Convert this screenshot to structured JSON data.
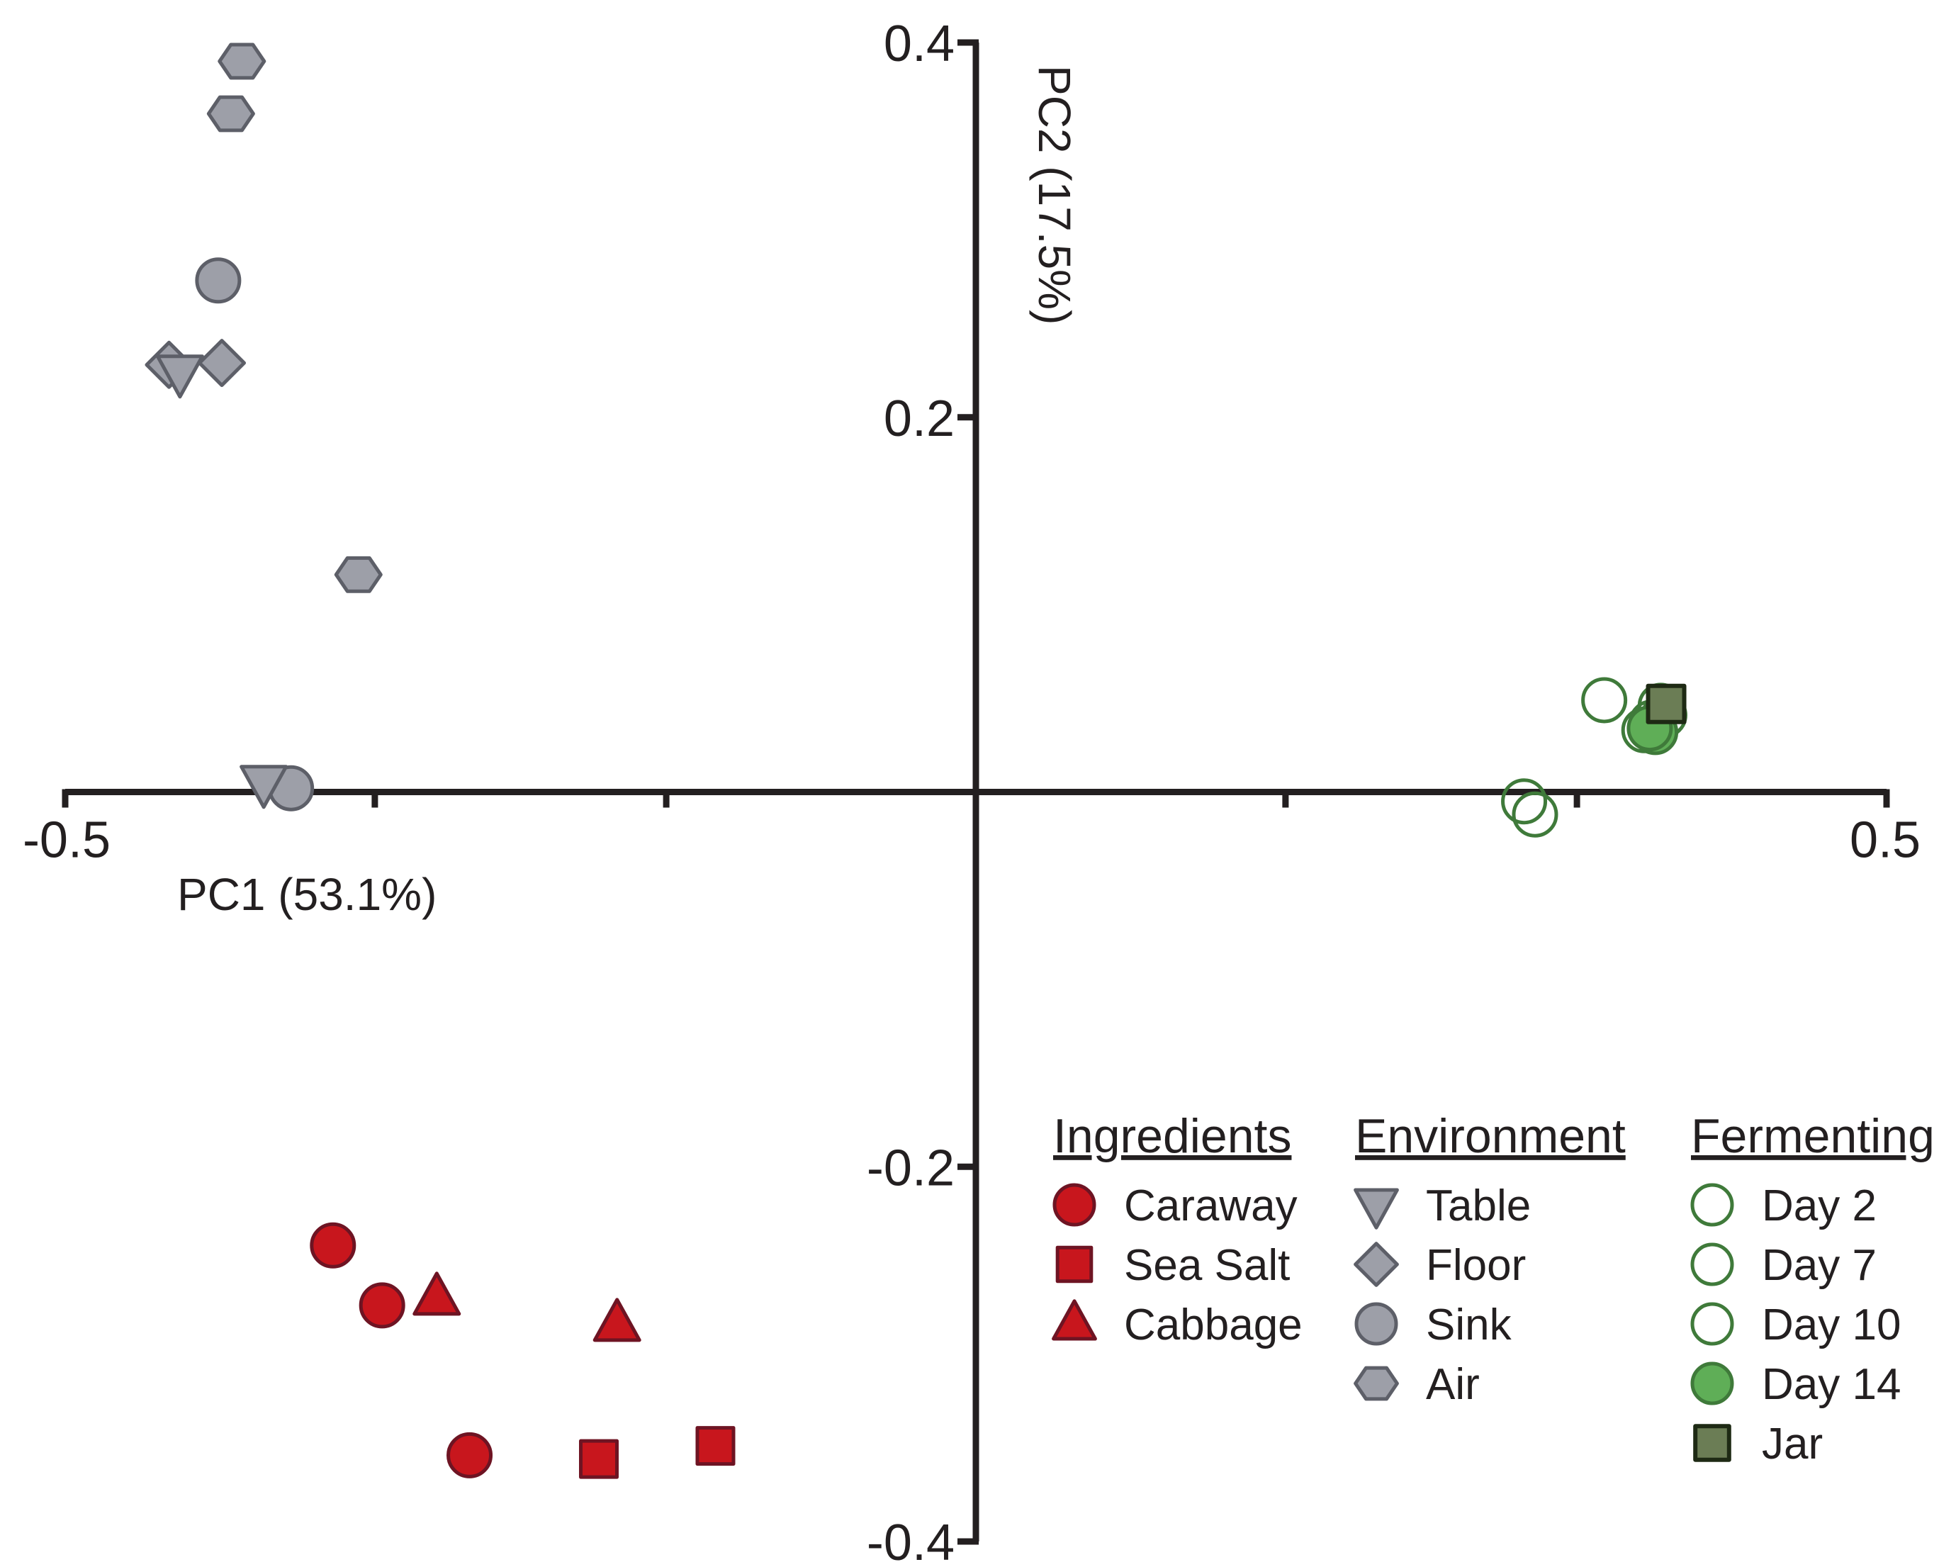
{
  "chart_data": {
    "type": "scatter",
    "title": "",
    "xlabel": "PC1 (53.1%)",
    "ylabel": "PC2 (17.5%)",
    "xlim": [
      -0.5,
      0.5
    ],
    "ylim": [
      -0.4,
      0.4
    ],
    "x_ticks": [
      -0.5,
      -0.33,
      -0.17,
      0.17,
      0.33,
      0.5
    ],
    "x_tick_labels": [
      "-0.5",
      "0.5"
    ],
    "y_ticks": [
      -0.4,
      -0.2,
      0.2,
      0.4
    ],
    "y_tick_labels": [
      "-0.4",
      "-0.2",
      "0.2",
      "0.4"
    ],
    "grid": false,
    "legend_position": "bottom-right",
    "colors": {
      "ingredient_fill": "#c8161d",
      "ingredient_stroke": "#6e1423",
      "environment_fill": "#9d9fa8",
      "environment_stroke": "#5d5f68",
      "fermenting_stroke": "#3f7a3a",
      "fermenting_fill_day14": "#5fae57",
      "jar_fill": "#6b7d55",
      "jar_stroke": "#1e2a14",
      "axis": "#231f20"
    },
    "legend": [
      {
        "title": "Ingredients",
        "entries": [
          {
            "label": "Caraway",
            "marker": "circle",
            "series": "Caraway"
          },
          {
            "label": "Sea Salt",
            "marker": "square",
            "series": "Sea Salt"
          },
          {
            "label": "Cabbage",
            "marker": "triangle-up",
            "series": "Cabbage"
          }
        ]
      },
      {
        "title": "Environment",
        "entries": [
          {
            "label": "Table",
            "marker": "triangle-down",
            "series": "Table"
          },
          {
            "label": "Floor",
            "marker": "diamond",
            "series": "Floor"
          },
          {
            "label": "Sink",
            "marker": "circle",
            "series": "Sink"
          },
          {
            "label": "Air",
            "marker": "hexagon",
            "series": "Air"
          }
        ]
      },
      {
        "title": "Fermenting",
        "entries": [
          {
            "label": "Day 2",
            "marker": "circle-open",
            "series": "Day 2"
          },
          {
            "label": "Day 7",
            "marker": "circle-open",
            "series": "Day 7"
          },
          {
            "label": "Day 10",
            "marker": "circle-open",
            "series": "Day 10"
          },
          {
            "label": "Day 14",
            "marker": "circle",
            "series": "Day 14"
          },
          {
            "label": "Jar",
            "marker": "square",
            "series": "Jar"
          }
        ]
      }
    ],
    "series": [
      {
        "name": "Caraway",
        "group": "Ingredients",
        "marker": "circle",
        "points": [
          [
            -0.353,
            -0.242
          ],
          [
            -0.326,
            -0.274
          ],
          [
            -0.278,
            -0.354
          ]
        ]
      },
      {
        "name": "Sea Salt",
        "group": "Ingredients",
        "marker": "square",
        "points": [
          [
            -0.207,
            -0.356
          ],
          [
            -0.143,
            -0.349
          ]
        ]
      },
      {
        "name": "Cabbage",
        "group": "Ingredients",
        "marker": "triangle-up",
        "points": [
          [
            -0.296,
            -0.27
          ],
          [
            -0.197,
            -0.284
          ]
        ]
      },
      {
        "name": "Table",
        "group": "Environment",
        "marker": "triangle-down",
        "points": [
          [
            -0.437,
            0.224
          ],
          [
            -0.391,
            0.005
          ]
        ]
      },
      {
        "name": "Floor",
        "group": "Environment",
        "marker": "diamond",
        "points": [
          [
            -0.443,
            0.228
          ],
          [
            -0.414,
            0.229
          ]
        ]
      },
      {
        "name": "Sink",
        "group": "Environment",
        "marker": "circle",
        "points": [
          [
            -0.416,
            0.273
          ],
          [
            -0.376,
            0.002
          ]
        ]
      },
      {
        "name": "Air",
        "group": "Environment",
        "marker": "hexagon",
        "points": [
          [
            -0.403,
            0.39
          ],
          [
            -0.409,
            0.362
          ],
          [
            -0.339,
            0.116
          ]
        ]
      },
      {
        "name": "Day 2",
        "group": "Fermenting",
        "marker": "circle-open",
        "points": [
          [
            0.301,
            -0.005
          ],
          [
            0.307,
            -0.012
          ],
          [
            0.345,
            0.049
          ]
        ]
      },
      {
        "name": "Day 7",
        "group": "Fermenting",
        "marker": "circle-open",
        "points": [
          [
            0.367,
            0.033
          ],
          [
            0.376,
            0.046
          ]
        ]
      },
      {
        "name": "Day 10",
        "group": "Fermenting",
        "marker": "circle-open",
        "points": [
          [
            0.371,
            0.037
          ],
          [
            0.378,
            0.041
          ]
        ]
      },
      {
        "name": "Day 14",
        "group": "Fermenting",
        "marker": "circle",
        "points": [
          [
            0.373,
            0.032
          ],
          [
            0.37,
            0.034
          ]
        ]
      },
      {
        "name": "Jar",
        "group": "Fermenting",
        "marker": "square",
        "points": [
          [
            0.379,
            0.047
          ]
        ]
      }
    ]
  }
}
